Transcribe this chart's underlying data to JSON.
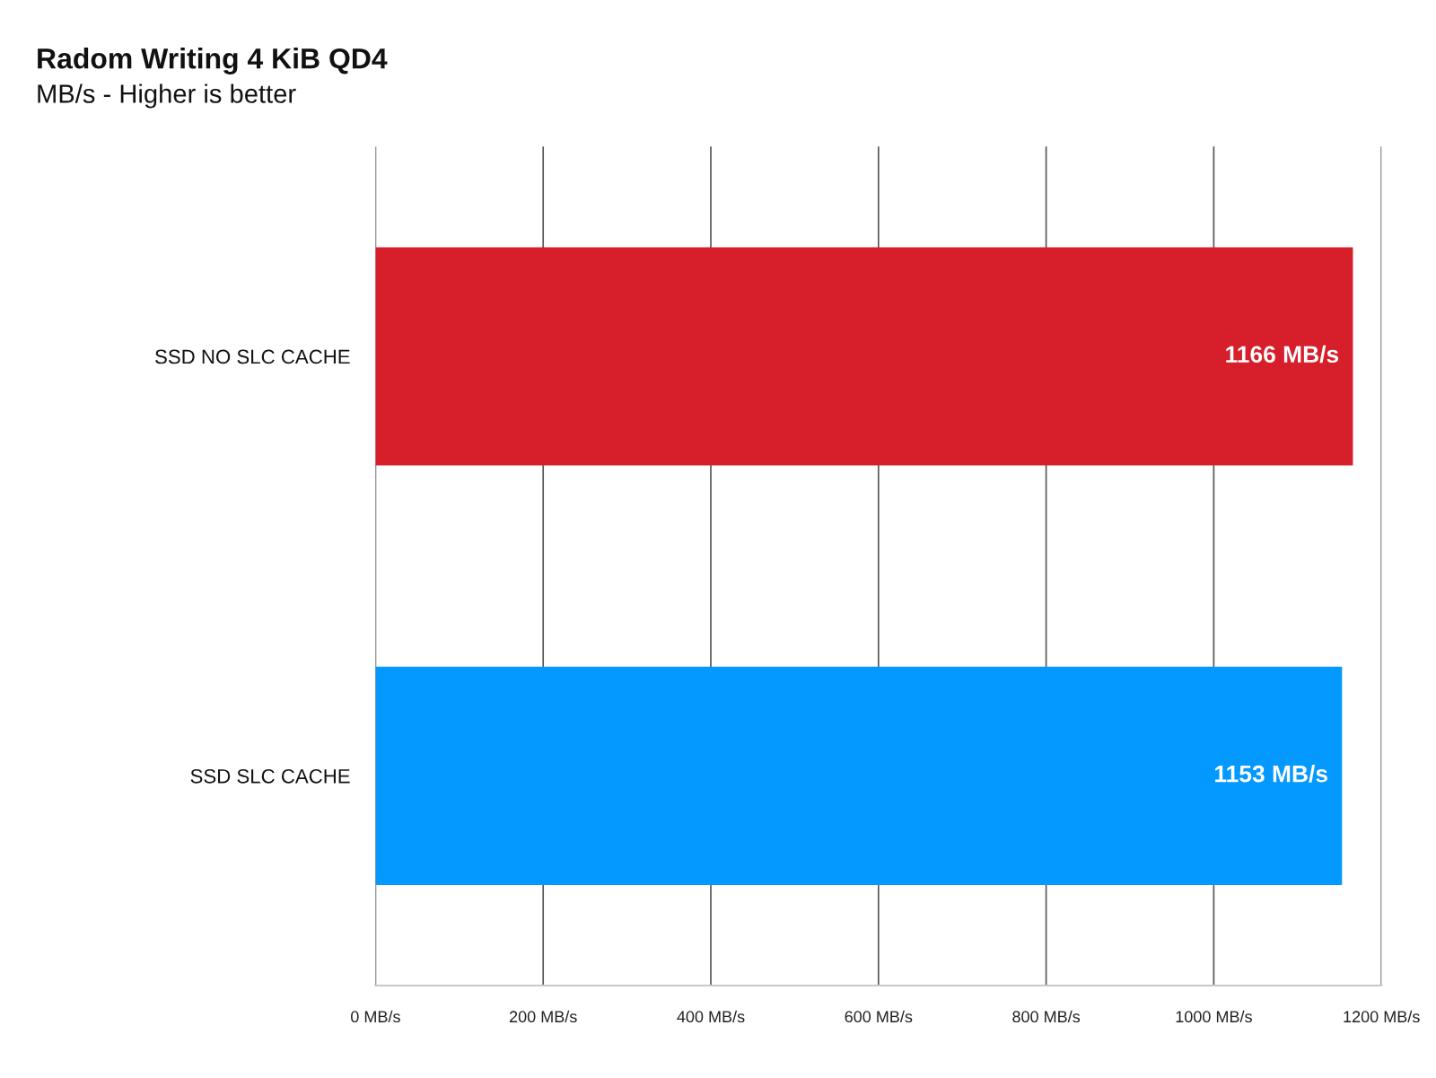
{
  "chart_data": {
    "type": "bar",
    "orientation": "horizontal",
    "title": "Radom Writing 4 KiB QD4",
    "subtitle": "MB/s - Higher is better",
    "categories": [
      "SSD NO SLC CACHE",
      "SSD SLC CACHE"
    ],
    "values": [
      1166,
      1153
    ],
    "colors": [
      "#d71f2c",
      "#0399fe"
    ],
    "value_labels": [
      "1166 MB/s",
      "1153 MB/s"
    ],
    "xlim": [
      0,
      1200
    ],
    "xticks": [
      {
        "value": 0,
        "label": "0 MB/s"
      },
      {
        "value": 200,
        "label": "200 MB/s"
      },
      {
        "value": 400,
        "label": "400 MB/s"
      },
      {
        "value": 600,
        "label": "600 MB/s"
      },
      {
        "value": 800,
        "label": "800 MB/s"
      },
      {
        "value": 1000,
        "label": "1000 MB/s"
      },
      {
        "value": 1200,
        "label": "1200 MB/s"
      }
    ],
    "grid": "x"
  }
}
